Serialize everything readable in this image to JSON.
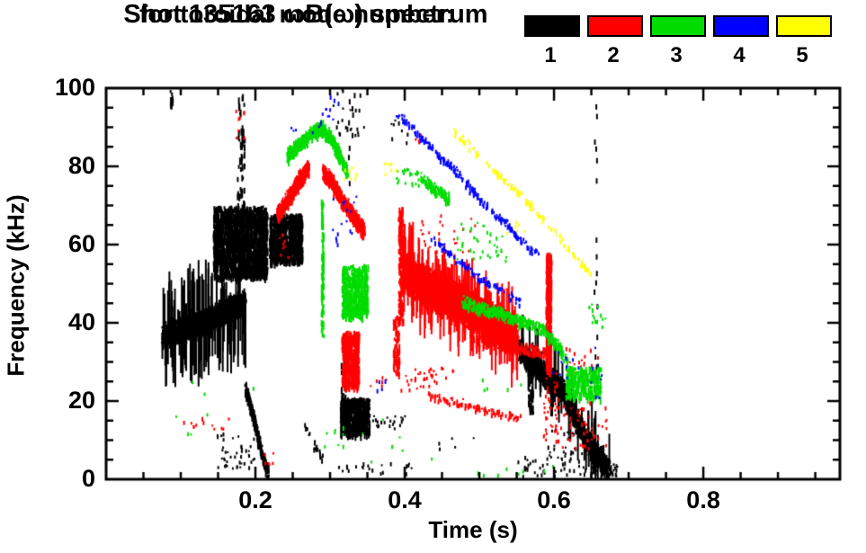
{
  "title": {
    "line1": "Shot 135163 ωB(ω) spectrum",
    "line2": "for toroidal mode number:"
  },
  "legend": {
    "entries": [
      {
        "label": "1",
        "color": "#000000"
      },
      {
        "label": "2",
        "color": "#FF0000"
      },
      {
        "label": "3",
        "color": "#00DC00"
      },
      {
        "label": "4",
        "color": "#0000FF"
      },
      {
        "label": "5",
        "color": "#FFFF00"
      }
    ]
  },
  "chart_data": {
    "type": "scatter",
    "title": "Shot 135163 ωB(ω) spectrum for toroidal mode number",
    "xlabel": "Time (s)",
    "ylabel": "Frequency (kHz)",
    "xlim": [
      0,
      0.983
    ],
    "ylim": [
      0,
      100
    ],
    "grid": false,
    "legend_position": "top-right",
    "x_major_ticks": [
      0.2,
      0.4,
      0.6,
      0.8
    ],
    "x_tick_labels": [
      "0.2",
      "0.4",
      "0.6",
      "0.8"
    ],
    "x_minor_step": 0.05,
    "y_major_ticks": [
      0,
      20,
      40,
      60,
      80,
      100
    ],
    "y_tick_labels": [
      "0",
      "20",
      "40",
      "60",
      "80",
      "100"
    ],
    "y_minor_step": 5,
    "mode_colors": {
      "1": "#000000",
      "2": "#FF0000",
      "3": "#00DC00",
      "4": "#0000FF",
      "5": "#FFFF00"
    },
    "features": [
      {
        "mode": 1,
        "kind": "band",
        "pts": [
          [
            0.075,
            37.5
          ],
          [
            0.1,
            38.5
          ],
          [
            0.13,
            40.5
          ],
          [
            0.155,
            43
          ],
          [
            0.185,
            45.5
          ]
        ],
        "w": 3.5,
        "n": 2300,
        "spike": 0.07,
        "sl": 14
      },
      {
        "mode": 1,
        "kind": "cluster",
        "t": [
          0.143,
          0.215
        ],
        "f": [
          52,
          70
        ],
        "n": 1700
      },
      {
        "mode": 1,
        "kind": "vline",
        "t": 0.18,
        "f": [
          68,
          99
        ],
        "n": 55,
        "jit": 0.005
      },
      {
        "mode": 1,
        "kind": "vline",
        "t": 0.087,
        "f": [
          95,
          100
        ],
        "n": 14,
        "jit": 0.002
      },
      {
        "mode": 1,
        "kind": "cluster",
        "t": [
          0.218,
          0.262
        ],
        "f": [
          56,
          68
        ],
        "n": 850
      },
      {
        "mode": 1,
        "kind": "band",
        "pts": [
          [
            0.186,
            24
          ],
          [
            0.198,
            15
          ],
          [
            0.208,
            7
          ],
          [
            0.216,
            2
          ]
        ],
        "w": 2,
        "n": 300
      },
      {
        "mode": 1,
        "kind": "dots",
        "t": [
          0.148,
          0.2
        ],
        "f": [
          3,
          12
        ],
        "n": 45
      },
      {
        "mode": 1,
        "kind": "band",
        "pts": [
          [
            0.265,
            14
          ],
          [
            0.29,
            5
          ]
        ],
        "w": 1.5,
        "n": 25
      },
      {
        "mode": 1,
        "kind": "cluster",
        "t": [
          0.313,
          0.352
        ],
        "f": [
          12,
          21
        ],
        "n": 600
      },
      {
        "mode": 1,
        "kind": "vline",
        "t": 0.317,
        "f": [
          13,
          32
        ],
        "n": 45,
        "jit": 0.003
      },
      {
        "mode": 1,
        "kind": "dots",
        "t": [
          0.3,
          0.345
        ],
        "f": [
          88,
          100
        ],
        "n": 22
      },
      {
        "mode": 1,
        "kind": "dashv",
        "t": 0.327,
        "f": [
          72,
          100
        ],
        "n": 16,
        "jit": 0.005
      },
      {
        "mode": 1,
        "kind": "dots",
        "t": [
          0.35,
          0.4
        ],
        "f": [
          13,
          17
        ],
        "n": 22
      },
      {
        "mode": 1,
        "kind": "dots",
        "t": [
          0.31,
          0.43
        ],
        "f": [
          1.5,
          4.5
        ],
        "n": 22
      },
      {
        "mode": 1,
        "kind": "dots",
        "t": [
          0.44,
          0.5
        ],
        "f": [
          8,
          11
        ],
        "n": 5
      },
      {
        "mode": 1,
        "kind": "band",
        "pts": [
          [
            0.552,
            33.5
          ],
          [
            0.57,
            30
          ],
          [
            0.59,
            26.5
          ],
          [
            0.61,
            23.5
          ],
          [
            0.628,
            16
          ],
          [
            0.65,
            8
          ],
          [
            0.672,
            3
          ]
        ],
        "w": 3.5,
        "n": 1800,
        "spike": 0.05,
        "sl": 8
      },
      {
        "mode": 1,
        "kind": "vline",
        "t": 0.568,
        "f": [
          17,
          33
        ],
        "n": 80,
        "jit": 0.003
      },
      {
        "mode": 1,
        "kind": "dashv",
        "t": 0.655,
        "f": [
          25,
          98
        ],
        "n": 26,
        "jit": 0.002
      },
      {
        "mode": 1,
        "kind": "dots",
        "t": [
          0.55,
          0.675
        ],
        "f": [
          1,
          6
        ],
        "n": 60
      },
      {
        "mode": 1,
        "kind": "dots",
        "t": [
          0.66,
          0.685
        ],
        "f": [
          1,
          5
        ],
        "n": 25
      },
      {
        "mode": 1,
        "kind": "dots",
        "t": [
          0.59,
          0.645
        ],
        "f": [
          6,
          13
        ],
        "n": 30
      },
      {
        "mode": 1,
        "kind": "dots",
        "t": [
          0.38,
          0.405
        ],
        "f": [
          86,
          92
        ],
        "n": 8
      },
      {
        "mode": 2,
        "kind": "band",
        "pts": [
          [
            0.228,
            68
          ],
          [
            0.243,
            72
          ],
          [
            0.258,
            77
          ],
          [
            0.27,
            80
          ]
        ],
        "w": 2.5,
        "n": 600
      },
      {
        "mode": 2,
        "kind": "band",
        "pts": [
          [
            0.29,
            79
          ],
          [
            0.302,
            76
          ],
          [
            0.318,
            71
          ],
          [
            0.332,
            67
          ],
          [
            0.345,
            64
          ]
        ],
        "w": 2.5,
        "n": 650
      },
      {
        "mode": 2,
        "kind": "cluster",
        "t": [
          0.315,
          0.338
        ],
        "f": [
          24,
          38
        ],
        "n": 500
      },
      {
        "mode": 2,
        "kind": "vline",
        "t": 0.394,
        "f": [
          40,
          70
        ],
        "n": 170,
        "jit": 0.003
      },
      {
        "mode": 2,
        "kind": "vline",
        "t": 0.388,
        "f": [
          27,
          42
        ],
        "n": 70,
        "jit": 0.004
      },
      {
        "mode": 2,
        "kind": "band",
        "pts": [
          [
            0.397,
            53
          ],
          [
            0.43,
            49.5
          ],
          [
            0.46,
            46.5
          ],
          [
            0.49,
            43.5
          ],
          [
            0.52,
            40
          ],
          [
            0.55,
            36.5
          ]
        ],
        "w": 5.5,
        "n": 4200,
        "spike": 0.08,
        "sl": 9
      },
      {
        "mode": 2,
        "kind": "band",
        "pts": [
          [
            0.49,
            36
          ],
          [
            0.55,
            34
          ],
          [
            0.59,
            32.5
          ]
        ],
        "w": 1.8,
        "n": 200
      },
      {
        "mode": 2,
        "kind": "band",
        "pts": [
          [
            0.43,
            22
          ],
          [
            0.49,
            19
          ],
          [
            0.555,
            15.5
          ]
        ],
        "w": 1.2,
        "n": 90
      },
      {
        "mode": 2,
        "kind": "vline",
        "t": 0.592,
        "f": [
          28,
          58
        ],
        "n": 340,
        "jit": 0.0035
      },
      {
        "mode": 2,
        "kind": "dots",
        "t": [
          0.585,
          0.605
        ],
        "f": [
          10,
          28
        ],
        "n": 40
      },
      {
        "mode": 2,
        "kind": "dots",
        "t": [
          0.6,
          0.672
        ],
        "f": [
          8,
          20
        ],
        "n": 55
      },
      {
        "mode": 2,
        "kind": "dots",
        "t": [
          0.615,
          0.66
        ],
        "f": [
          24,
          34
        ],
        "n": 28
      },
      {
        "mode": 2,
        "kind": "dots",
        "t": [
          0.4,
          0.47
        ],
        "f": [
          25,
          29
        ],
        "n": 22
      },
      {
        "mode": 2,
        "kind": "dots",
        "t": [
          0.1,
          0.165
        ],
        "f": [
          13,
          16
        ],
        "n": 12
      },
      {
        "mode": 2,
        "kind": "dots",
        "t": [
          0.17,
          0.185
        ],
        "f": [
          86,
          95
        ],
        "n": 9
      },
      {
        "mode": 2,
        "kind": "dots",
        "t": [
          0.23,
          0.245
        ],
        "f": [
          57,
          63
        ],
        "n": 8
      },
      {
        "mode": 2,
        "kind": "dots",
        "t": [
          0.41,
          0.43
        ],
        "f": [
          86,
          89
        ],
        "n": 4
      },
      {
        "mode": 2,
        "kind": "dots",
        "t": [
          0.42,
          0.5
        ],
        "f": [
          58,
          68
        ],
        "n": 28
      },
      {
        "mode": 2,
        "kind": "dots",
        "t": [
          0.35,
          0.45
        ],
        "f": [
          23,
          27
        ],
        "n": 18
      },
      {
        "mode": 2,
        "kind": "dots",
        "t": [
          0.205,
          0.225
        ],
        "f": [
          4,
          7
        ],
        "n": 6
      },
      {
        "mode": 3,
        "kind": "band",
        "pts": [
          [
            0.242,
            83
          ],
          [
            0.258,
            86
          ],
          [
            0.272,
            88.5
          ],
          [
            0.288,
            90
          ],
          [
            0.302,
            87
          ],
          [
            0.315,
            82
          ],
          [
            0.322,
            79
          ]
        ],
        "w": 2.2,
        "n": 700
      },
      {
        "mode": 3,
        "kind": "vline",
        "t": 0.289,
        "f": [
          35,
          72
        ],
        "n": 95,
        "jit": 0.0015
      },
      {
        "mode": 3,
        "kind": "cluster",
        "t": [
          0.315,
          0.35
        ],
        "f": [
          42,
          55
        ],
        "n": 450
      },
      {
        "mode": 3,
        "kind": "dots",
        "t": [
          0.385,
          0.42
        ],
        "f": [
          75,
          80
        ],
        "n": 25
      },
      {
        "mode": 3,
        "kind": "band",
        "pts": [
          [
            0.42,
            77
          ],
          [
            0.44,
            74.5
          ],
          [
            0.458,
            72
          ]
        ],
        "w": 1.8,
        "n": 130
      },
      {
        "mode": 3,
        "kind": "dots",
        "t": [
          0.465,
          0.535
        ],
        "f": [
          56,
          66
        ],
        "n": 38
      },
      {
        "mode": 3,
        "kind": "band",
        "pts": [
          [
            0.476,
            45.5
          ],
          [
            0.52,
            43
          ],
          [
            0.55,
            41
          ],
          [
            0.585,
            38.5
          ],
          [
            0.605,
            34
          ],
          [
            0.617,
            30.5
          ]
        ],
        "w": 1.8,
        "n": 420
      },
      {
        "mode": 3,
        "kind": "cluster",
        "t": [
          0.615,
          0.662
        ],
        "f": [
          21,
          29
        ],
        "n": 280
      },
      {
        "mode": 3,
        "kind": "dots",
        "t": [
          0.645,
          0.668
        ],
        "f": [
          39,
          45
        ],
        "n": 16
      },
      {
        "mode": 3,
        "kind": "dots",
        "t": [
          0.29,
          0.32
        ],
        "f": [
          8,
          14
        ],
        "n": 8
      },
      {
        "mode": 3,
        "kind": "dots",
        "t": [
          0.28,
          0.45
        ],
        "f": [
          4,
          18
        ],
        "n": 8
      },
      {
        "mode": 3,
        "kind": "dots",
        "t": [
          0.09,
          0.27
        ],
        "f": [
          6,
          27
        ],
        "n": 7
      },
      {
        "mode": 3,
        "kind": "dots",
        "t": [
          0.49,
          0.6
        ],
        "f": [
          1,
          4
        ],
        "n": 8
      },
      {
        "mode": 3,
        "kind": "dots",
        "t": [
          0.49,
          0.56
        ],
        "f": [
          23,
          26
        ],
        "n": 5
      },
      {
        "mode": 4,
        "kind": "band",
        "pts": [
          [
            0.388,
            94
          ],
          [
            0.415,
            89
          ],
          [
            0.44,
            84
          ],
          [
            0.465,
            80
          ],
          [
            0.49,
            74
          ],
          [
            0.515,
            69
          ],
          [
            0.54,
            64.5
          ],
          [
            0.565,
            59.5
          ],
          [
            0.578,
            57.5
          ]
        ],
        "w": 1.3,
        "n": 210
      },
      {
        "mode": 4,
        "kind": "band",
        "pts": [
          [
            0.435,
            62
          ],
          [
            0.465,
            57
          ],
          [
            0.5,
            52
          ],
          [
            0.535,
            47.5
          ],
          [
            0.555,
            45.5
          ]
        ],
        "w": 1.2,
        "n": 95
      },
      {
        "mode": 4,
        "kind": "dots",
        "t": [
          0.27,
          0.32
        ],
        "f": [
          88,
          99
        ],
        "n": 14
      },
      {
        "mode": 4,
        "kind": "dots",
        "t": [
          0.3,
          0.335
        ],
        "f": [
          60,
          73
        ],
        "n": 16
      },
      {
        "mode": 4,
        "kind": "dots",
        "t": [
          0.595,
          0.655
        ],
        "f": [
          25,
          34
        ],
        "n": 12
      },
      {
        "mode": 4,
        "kind": "dots",
        "t": [
          0.245,
          0.255
        ],
        "f": [
          88,
          91
        ],
        "n": 3
      },
      {
        "mode": 4,
        "kind": "dots",
        "t": [
          0.655,
          0.675
        ],
        "f": [
          20,
          30
        ],
        "n": 5
      },
      {
        "mode": 4,
        "kind": "dots",
        "t": [
          0.36,
          0.38
        ],
        "f": [
          22,
          26
        ],
        "n": 4
      },
      {
        "mode": 5,
        "kind": "band",
        "pts": [
          [
            0.465,
            89
          ],
          [
            0.49,
            85
          ],
          [
            0.515,
            80
          ],
          [
            0.54,
            75.5
          ],
          [
            0.565,
            71
          ],
          [
            0.59,
            66
          ],
          [
            0.615,
            60
          ],
          [
            0.635,
            55.5
          ],
          [
            0.648,
            53.5
          ]
        ],
        "w": 1.2,
        "n": 115
      },
      {
        "mode": 5,
        "kind": "dots",
        "t": [
          0.318,
          0.335
        ],
        "f": [
          77,
          80
        ],
        "n": 7
      },
      {
        "mode": 5,
        "kind": "dots",
        "t": [
          0.372,
          0.39
        ],
        "f": [
          77,
          84
        ],
        "n": 7
      },
      {
        "mode": 5,
        "kind": "dots",
        "t": [
          0.535,
          0.56
        ],
        "f": [
          62,
          67
        ],
        "n": 6
      }
    ]
  }
}
